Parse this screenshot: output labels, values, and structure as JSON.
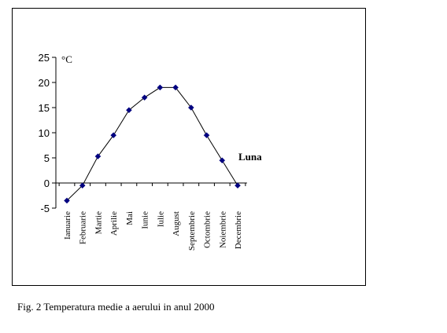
{
  "chart_data": {
    "type": "line",
    "categories": [
      "Ianuarie",
      "Februarie",
      "Martie",
      "Aprilie",
      "Mai",
      "Iunie",
      "Iulie",
      "August",
      "Septembrie",
      "Octombrie",
      "Noiembrie",
      "Decembrie"
    ],
    "series": [
      {
        "values": [
          -3.5,
          -0.5,
          5.3,
          9.5,
          14.5,
          17,
          19,
          19,
          15,
          9.5,
          4.5,
          -0.5
        ]
      }
    ],
    "ylabel": "°C",
    "xlabel": "Luna",
    "ylim": [
      -5,
      25
    ],
    "yticks": [
      25,
      20,
      15,
      10,
      5,
      0,
      -5
    ],
    "grid": false,
    "legend": "none",
    "line_color": "#000000",
    "marker_color": "#000080"
  },
  "caption": "Fig. 2 Temperatura medie a aerului in anul 2000"
}
